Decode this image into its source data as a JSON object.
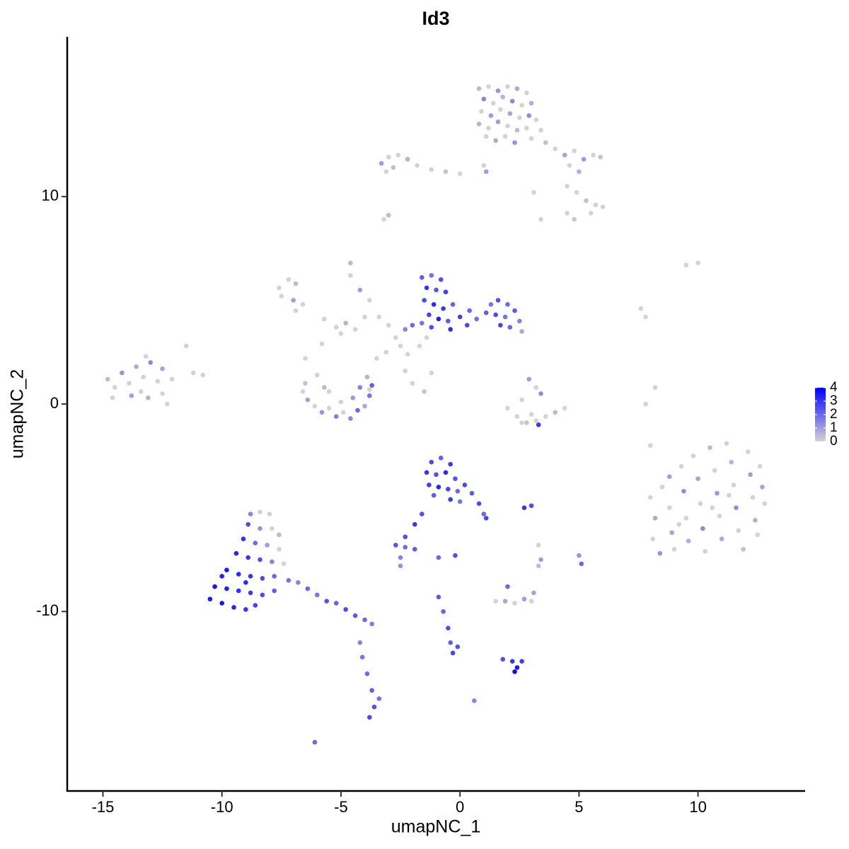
{
  "chart_data": {
    "type": "scatter",
    "title": "Id3",
    "x_label": "umapNC_1",
    "y_label": "umapNC_2",
    "xlim": [
      -16.5,
      14.5
    ],
    "ylim": [
      -18.65,
      17.7
    ],
    "xticks": [
      -15,
      -10,
      -5,
      0,
      5,
      10
    ],
    "yticks": [
      -10,
      0,
      10
    ],
    "color_scale": {
      "lim": [
        0,
        4
      ],
      "ticks": [
        0,
        1,
        2,
        3,
        4
      ],
      "low": "#d3d3d3",
      "high": "#0000ff"
    },
    "x": [
      0.8,
      1.2,
      1.6,
      2.0,
      2.4,
      2.8,
      1.0,
      1.4,
      1.8,
      2.2,
      2.6,
      3.0,
      0.9,
      1.3,
      1.7,
      2.1,
      2.5,
      2.9,
      3.2,
      0.8,
      1.2,
      1.6,
      2.0,
      2.4,
      2.8,
      3.4,
      1.1,
      1.5,
      1.9,
      2.3,
      3.0,
      3.6,
      4.0,
      4.4,
      4.8,
      5.2,
      5.6,
      5.9,
      4.6,
      5.0,
      4.5,
      4.9,
      5.3,
      5.7,
      6.0,
      5.5,
      4.5,
      4.8,
      3.4,
      3.1,
      1.0,
      1.1,
      0.0,
      -0.6,
      -1.2,
      -1.8,
      -2.2,
      -2.6,
      -3.0,
      -3.3,
      -3.1,
      -2.8,
      -3.0,
      -3.2,
      -7.6,
      -7.2,
      -6.9,
      -7.5,
      -7.0,
      -6.6,
      -6.9,
      -5.7,
      -5.2,
      -4.8,
      -4.4,
      -4.0,
      -5.0,
      -4.6,
      -4.6,
      -4.2,
      -3.8,
      -3.4,
      -3.0,
      -2.7,
      -2.5,
      -2.2,
      -1.7,
      -1.4,
      -3.1,
      -3.5,
      -2.3,
      -2.0,
      -1.5,
      -3.8,
      -5.8,
      -6.5,
      -1.2,
      -1.6,
      -1.2,
      -0.8,
      -1.4,
      -1.0,
      -0.6,
      -1.5,
      -1.1,
      -0.7,
      -0.3,
      -1.3,
      -0.9,
      -0.5,
      0.0,
      0.4,
      -1.6,
      -1.2,
      -0.4,
      0.3,
      0.7,
      1.1,
      1.3,
      1.6,
      2.0,
      1.5,
      1.9,
      2.3,
      2.5,
      2.1,
      1.7,
      2.6,
      -2.0,
      -2.3,
      -14.8,
      -14.5,
      -14.2,
      -13.9,
      -13.6,
      -13.3,
      -13.0,
      -12.7,
      -13.8,
      -13.4,
      -13.1,
      -12.5,
      -12.3,
      -13.2,
      -14.6,
      -12.1,
      -11.5,
      -11.2,
      -10.8,
      -12.5,
      -6.5,
      -6.6,
      -6.4,
      -6.1,
      -5.8,
      -5.5,
      -5.2,
      -4.9,
      -4.6,
      -4.3,
      -4.0,
      -3.8,
      -3.7,
      -3.9,
      -4.2,
      -4.5,
      -5.0,
      -5.5,
      -6.0,
      -5.7,
      2.9,
      3.2,
      3.4,
      2.6,
      2.0,
      2.4,
      2.8,
      3.2,
      3.6,
      4.0,
      4.4,
      3.0,
      3.3,
      2.6,
      9.5,
      10.0,
      7.6,
      7.8,
      8.2,
      7.8,
      8.0,
      8.0,
      8.2,
      8.1,
      8.4,
      8.5,
      8.8,
      8.8,
      8.9,
      9.0,
      9.3,
      9.4,
      9.5,
      9.6,
      9.8,
      10.0,
      10.1,
      10.2,
      10.3,
      10.5,
      10.7,
      10.8,
      10.9,
      11.0,
      11.2,
      11.4,
      11.5,
      11.6,
      11.7,
      11.9,
      12.1,
      12.2,
      12.3,
      12.4,
      12.6,
      12.7,
      12.8,
      12.5,
      9.2,
      10.6,
      11.3,
      -1.2,
      -0.8,
      -0.4,
      -1.4,
      -1.0,
      -0.6,
      -0.2,
      -1.3,
      -0.9,
      -0.5,
      -0.1,
      0.2,
      -1.1,
      -0.4,
      0.0,
      0.5,
      0.8,
      1.0,
      1.1,
      -1.6,
      -1.9,
      -2.3,
      -8.8,
      -8.4,
      -8.0,
      -8.9,
      -8.4,
      -7.9,
      -7.6,
      -9.1,
      -8.6,
      -8.1,
      -7.6,
      -9.4,
      -8.9,
      -8.4,
      -7.9,
      -7.4,
      -9.8,
      -9.3,
      -8.8,
      -8.3,
      -7.8,
      -10.3,
      -9.8,
      -9.3,
      -8.8,
      -8.3,
      -7.8,
      -10.5,
      -10.0,
      -9.5,
      -9.0,
      -8.6,
      -10.0,
      -9.0,
      -7.2,
      -6.8,
      -6.4,
      -6.0,
      -5.6,
      -5.2,
      -4.8,
      -4.4,
      -4.0,
      -3.7,
      -4.2,
      -4.1,
      -3.9,
      -3.7,
      -3.6,
      -3.8,
      -3.4,
      -6.1,
      -2.7,
      -2.3,
      -1.9,
      -2.5,
      -2.5,
      -0.9,
      -0.9,
      -0.7,
      -0.5,
      -0.4,
      -0.3,
      -0.1,
      1.5,
      1.9,
      2.3,
      2.7,
      3.0,
      3.1,
      2.0,
      1.8,
      2.2,
      2.4,
      2.6,
      2.3,
      2.7,
      3.0,
      3.4,
      3.3,
      5.0,
      5.1,
      3.3,
      0.6,
      -0.2
    ],
    "values": [
      15.2,
      15.3,
      15.1,
      15.3,
      15.2,
      15.0,
      14.7,
      14.5,
      14.8,
      14.6,
      14.4,
      14.5,
      14.1,
      13.9,
      14.2,
      14.0,
      13.8,
      13.9,
      13.7,
      13.5,
      13.3,
      13.6,
      13.4,
      13.2,
      13.3,
      13.2,
      12.9,
      12.7,
      12.9,
      12.6,
      12.8,
      12.6,
      12.3,
      12.0,
      12.2,
      11.8,
      12.0,
      11.9,
      11.5,
      11.2,
      10.5,
      10.2,
      9.8,
      9.6,
      9.5,
      9.2,
      9.2,
      8.9,
      8.9,
      10.2,
      11.5,
      11.2,
      11.1,
      11.2,
      11.3,
      11.5,
      11.8,
      12.0,
      11.9,
      11.6,
      11.2,
      11.4,
      9.1,
      8.9,
      5.6,
      6.0,
      5.8,
      5.2,
      5.0,
      4.8,
      4.5,
      4.1,
      3.7,
      3.9,
      3.6,
      4.2,
      3.4,
      6.2,
      6.8,
      5.5,
      5.0,
      4.2,
      3.8,
      3.2,
      2.8,
      2.4,
      2.8,
      3.2,
      2.5,
      2.2,
      1.6,
      1.0,
      0.6,
      0.7,
      2.9,
      2.2,
      1.5,
      6.1,
      6.2,
      6.0,
      5.6,
      5.5,
      5.4,
      5.0,
      4.8,
      4.6,
      4.8,
      4.3,
      4.1,
      4.0,
      4.2,
      4.5,
      3.9,
      3.7,
      3.6,
      3.8,
      4.1,
      4.4,
      4.8,
      5.0,
      4.8,
      4.3,
      4.2,
      4.5,
      4.0,
      3.7,
      3.8,
      3.5,
      3.8,
      3.6,
      1.2,
      0.8,
      1.5,
      1.0,
      1.8,
      1.3,
      2.0,
      1.1,
      0.4,
      0.6,
      0.3,
      0.5,
      0.0,
      2.3,
      0.3,
      1.2,
      2.8,
      1.5,
      1.4,
      1.7,
      1.0,
      0.6,
      0.2,
      -0.1,
      -0.4,
      -0.2,
      -0.6,
      -0.4,
      -0.7,
      -0.3,
      -0.1,
      0.4,
      0.9,
      1.3,
      0.8,
      0.3,
      0.1,
      0.6,
      1.4,
      0.8,
      1.2,
      0.8,
      0.5,
      0.2,
      -0.2,
      -0.6,
      -0.9,
      -0.8,
      -0.6,
      -0.4,
      -0.2,
      -0.5,
      -1.0,
      -0.9,
      6.7,
      6.8,
      4.6,
      4.2,
      0.8,
      0.0,
      -2.0,
      -4.5,
      -5.5,
      -6.5,
      -7.2,
      -4.0,
      -3.5,
      -5.0,
      -6.2,
      -7.0,
      -3.0,
      -4.2,
      -5.5,
      -6.6,
      -2.5,
      -3.6,
      -4.8,
      -6.0,
      -7.1,
      -2.1,
      -3.2,
      -4.3,
      -5.4,
      -6.5,
      -1.9,
      -2.8,
      -3.9,
      -5.0,
      -6.1,
      -7.0,
      -2.3,
      -3.4,
      -4.5,
      -5.6,
      -3.0,
      -4.0,
      -4.8,
      -6.3,
      -5.8,
      -5.0,
      -4.4,
      -2.8,
      -2.6,
      -2.9,
      -3.3,
      -3.4,
      -3.3,
      -3.6,
      -3.9,
      -4.0,
      -4.1,
      -4.2,
      -3.9,
      -4.4,
      -4.6,
      -4.7,
      -4.3,
      -4.8,
      -5.3,
      -5.5,
      -5.3,
      -5.8,
      -6.4,
      -5.3,
      -5.2,
      -5.3,
      -5.8,
      -6.0,
      -6.0,
      -6.3,
      -6.5,
      -6.7,
      -6.8,
      -7.0,
      -7.2,
      -7.4,
      -7.5,
      -7.6,
      -7.7,
      -8.0,
      -8.2,
      -8.3,
      -8.4,
      -8.3,
      -8.8,
      -8.9,
      -9.0,
      -9.1,
      -9.2,
      -9.0,
      -9.4,
      -9.6,
      -9.8,
      -9.9,
      -9.7,
      -8.3,
      -8.6,
      -8.5,
      -8.6,
      -8.9,
      -9.2,
      -9.5,
      -9.6,
      -9.9,
      -10.2,
      -10.4,
      -10.6,
      -11.5,
      -12.2,
      -13.0,
      -13.8,
      -14.6,
      -15.1,
      -14.2,
      -16.3,
      -6.8,
      -6.9,
      -7.0,
      -7.4,
      -7.8,
      -7.4,
      -9.3,
      -10.0,
      -10.8,
      -11.5,
      -12.0,
      -11.7,
      -9.5,
      -9.5,
      -9.6,
      -9.4,
      -9.5,
      -9.1,
      -8.8,
      -12.3,
      -12.4,
      -12.7,
      -12.4,
      -12.9,
      -5.0,
      -4.9,
      -7.5,
      -7.8,
      -7.3,
      -7.7,
      -6.8,
      -14.3,
      -7.3
    ],
    "expression": [
      0.5,
      0,
      1.2,
      0,
      0.8,
      0,
      1.5,
      0,
      0.6,
      1.4,
      0,
      0.7,
      0,
      1.1,
      0,
      0.9,
      0,
      1.3,
      0,
      0.6,
      0,
      1.0,
      0,
      0.5,
      0,
      0,
      0,
      0.8,
      0,
      1.2,
      0,
      0.4,
      0,
      0.9,
      0,
      1.1,
      0,
      0.3,
      0,
      0.7,
      0,
      0,
      0.4,
      0,
      0,
      0,
      0,
      0.2,
      0,
      0,
      0,
      1.0,
      0,
      0.3,
      0,
      0,
      0.6,
      0,
      0,
      1.0,
      0,
      0.4,
      0.5,
      0,
      0,
      0,
      0.5,
      0,
      1.0,
      0,
      0,
      0,
      0,
      0.6,
      0,
      0,
      0,
      0,
      0.5,
      1.0,
      0,
      0,
      0,
      0,
      0,
      0,
      0,
      0,
      0,
      0,
      0,
      0,
      0.3,
      0,
      0,
      0,
      0,
      2.2,
      1.8,
      2.5,
      3.0,
      2.4,
      2.8,
      2.6,
      3.2,
      2.9,
      2.1,
      2.7,
      3.4,
      2.3,
      2.8,
      2.0,
      1.8,
      2.5,
      3.1,
      2.6,
      1.9,
      2.2,
      1.7,
      2.4,
      2.0,
      2.6,
      1.8,
      2.3,
      1.5,
      2.1,
      2.7,
      0.8,
      2.0,
      1.5,
      0.5,
      0,
      1.2,
      0,
      0.8,
      0,
      1.4,
      0,
      1.0,
      0,
      0.6,
      0,
      0,
      0,
      0,
      0,
      0,
      0,
      0,
      0.9,
      0.3,
      0,
      1.0,
      0,
      1.2,
      0,
      1.6,
      0,
      1.4,
      2.0,
      0.8,
      1.8,
      2.2,
      0.6,
      1.5,
      1.1,
      0,
      0,
      0,
      0.5,
      1.0,
      0,
      1.3,
      0,
      0,
      0,
      0.3,
      0,
      0,
      0.5,
      0,
      0,
      3.0,
      0,
      0,
      0,
      0,
      0,
      0,
      0,
      0,
      0,
      0.8,
      0,
      1.2,
      0,
      1.0,
      0,
      0.9,
      0,
      0,
      1.3,
      0,
      0.7,
      0,
      0.9,
      0,
      1.4,
      0,
      0.5,
      0,
      1.1,
      0,
      0.8,
      0,
      0.6,
      0,
      1.3,
      0,
      0.4,
      0,
      1.0,
      0,
      0.7,
      0,
      0.9,
      0,
      0,
      0,
      0,
      0,
      2.6,
      2.2,
      2.9,
      3.0,
      2.5,
      3.2,
      2.4,
      2.8,
      3.3,
      2.7,
      2.0,
      2.6,
      2.2,
      2.9,
      1.8,
      2.3,
      2.5,
      2.0,
      2.7,
      2.5,
      2.9,
      2.4,
      1.5,
      0,
      0,
      2.6,
      1.2,
      0,
      0.5,
      3.1,
      2.0,
      1.0,
      0,
      3.3,
      3.0,
      2.5,
      1.5,
      0,
      3.5,
      3.2,
      3.0,
      2.6,
      2.0,
      3.6,
      3.4,
      3.1,
      2.9,
      2.5,
      2.2,
      3.5,
      3.6,
      3.3,
      3.0,
      2.7,
      3.4,
      3.2,
      1.8,
      1.5,
      2.0,
      1.8,
      2.4,
      2.1,
      2.6,
      2.3,
      2.0,
      1.6,
      1.5,
      1.8,
      2.0,
      2.2,
      2.5,
      2.6,
      1.8,
      2.0,
      2.4,
      2.0,
      2.2,
      1.5,
      1.2,
      2.0,
      2.3,
      2.1,
      2.5,
      2.2,
      2.7,
      2.4,
      0,
      0.8,
      0,
      1.0,
      0,
      0.9,
      2.0,
      2.5,
      3.0,
      3.6,
      2.8,
      3.8,
      3.0,
      2.5,
      1.0,
      0.5,
      1.2,
      2.0,
      0,
      1.5,
      2.5
    ]
  }
}
